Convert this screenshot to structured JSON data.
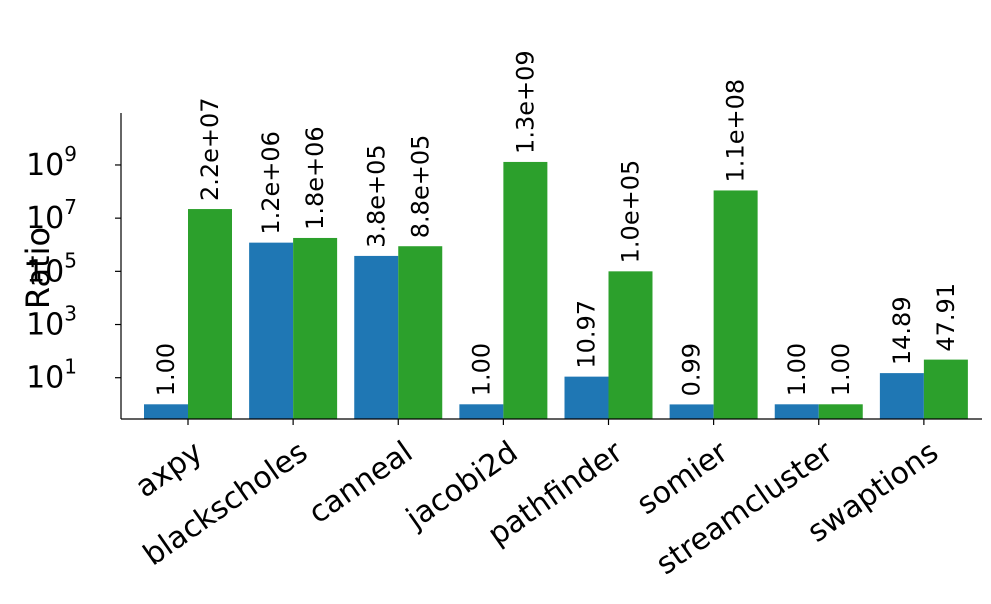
{
  "chart_data": {
    "type": "bar",
    "title": "",
    "xlabel": "",
    "ylabel": "Ratio",
    "yscale": "log",
    "ylim": [
      0.28,
      90000000000
    ],
    "yticks": [
      {
        "value": 10,
        "base": "10",
        "exp": "1"
      },
      {
        "value": 1000,
        "base": "10",
        "exp": "3"
      },
      {
        "value": 100000,
        "base": "10",
        "exp": "5"
      },
      {
        "value": 10000000,
        "base": "10",
        "exp": "7"
      },
      {
        "value": 1000000000,
        "base": "10",
        "exp": "9"
      }
    ],
    "grid": false,
    "legend": "none",
    "categories": [
      "axpy",
      "blackscholes",
      "canneal",
      "jacobi2d",
      "pathfinder",
      "somier",
      "streamcluster",
      "swaptions"
    ],
    "series": [
      {
        "color": "#1f77b4",
        "values": [
          1.0,
          1200000,
          380000,
          1.0,
          10.97,
          0.99,
          1.0,
          14.89
        ],
        "labels": [
          "1.00",
          "1.2e+06",
          "3.8e+05",
          "1.00",
          "10.97",
          "0.99",
          "1.00",
          "14.89"
        ]
      },
      {
        "color": "#2ca02c",
        "values": [
          22000000,
          1800000,
          880000,
          1300000000,
          100000,
          110000000,
          1.0,
          47.91
        ],
        "labels": [
          "2.2e+07",
          "1.8e+06",
          "8.8e+05",
          "1.3e+09",
          "1.0e+05",
          "1.1e+08",
          "1.00",
          "47.91"
        ]
      }
    ]
  }
}
